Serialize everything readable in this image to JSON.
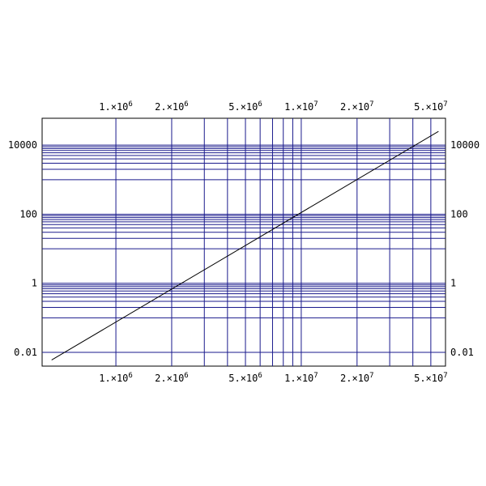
{
  "chart_data": {
    "type": "line",
    "title": "",
    "xlabel": "",
    "ylabel": "",
    "xscale": "log",
    "yscale": "log",
    "xlim": [
      400000,
      60000000
    ],
    "ylim": [
      0.004,
      60000
    ],
    "grid": true,
    "grid_color": "#1a1a8c",
    "line_color": "#000000",
    "x_gridlines": [
      1000000,
      2000000,
      3000000,
      4000000,
      5000000,
      6000000,
      7000000,
      8000000,
      9000000,
      10000000,
      20000000,
      30000000,
      40000000,
      50000000
    ],
    "y_gridlines": [
      0.01,
      0.1,
      0.2,
      0.3,
      0.4,
      0.5,
      0.6,
      0.7,
      0.8,
      0.9,
      1,
      10,
      20,
      30,
      40,
      50,
      60,
      70,
      80,
      90,
      100,
      1000,
      2000,
      3000,
      4000,
      5000,
      6000,
      7000,
      8000,
      9000,
      10000
    ],
    "x_ticks": [
      {
        "value": 1000000,
        "mantissa": "1.×10",
        "exp": "6"
      },
      {
        "value": 2000000,
        "mantissa": "2.×10",
        "exp": "6"
      },
      {
        "value": 5000000,
        "mantissa": "5.×10",
        "exp": "6"
      },
      {
        "value": 10000000,
        "mantissa": "1.×10",
        "exp": "7"
      },
      {
        "value": 20000000,
        "mantissa": "2.×10",
        "exp": "7"
      },
      {
        "value": 50000000,
        "mantissa": "5.×10",
        "exp": "7"
      }
    ],
    "y_ticks": [
      {
        "value": 0.01,
        "label": "0.01"
      },
      {
        "value": 1,
        "label": "1"
      },
      {
        "value": 100,
        "label": "100"
      },
      {
        "value": 10000,
        "label": "10000"
      }
    ],
    "series": [
      {
        "x": [
          450000,
          55000000
        ],
        "y": [
          0.006,
          25000
        ]
      }
    ]
  }
}
